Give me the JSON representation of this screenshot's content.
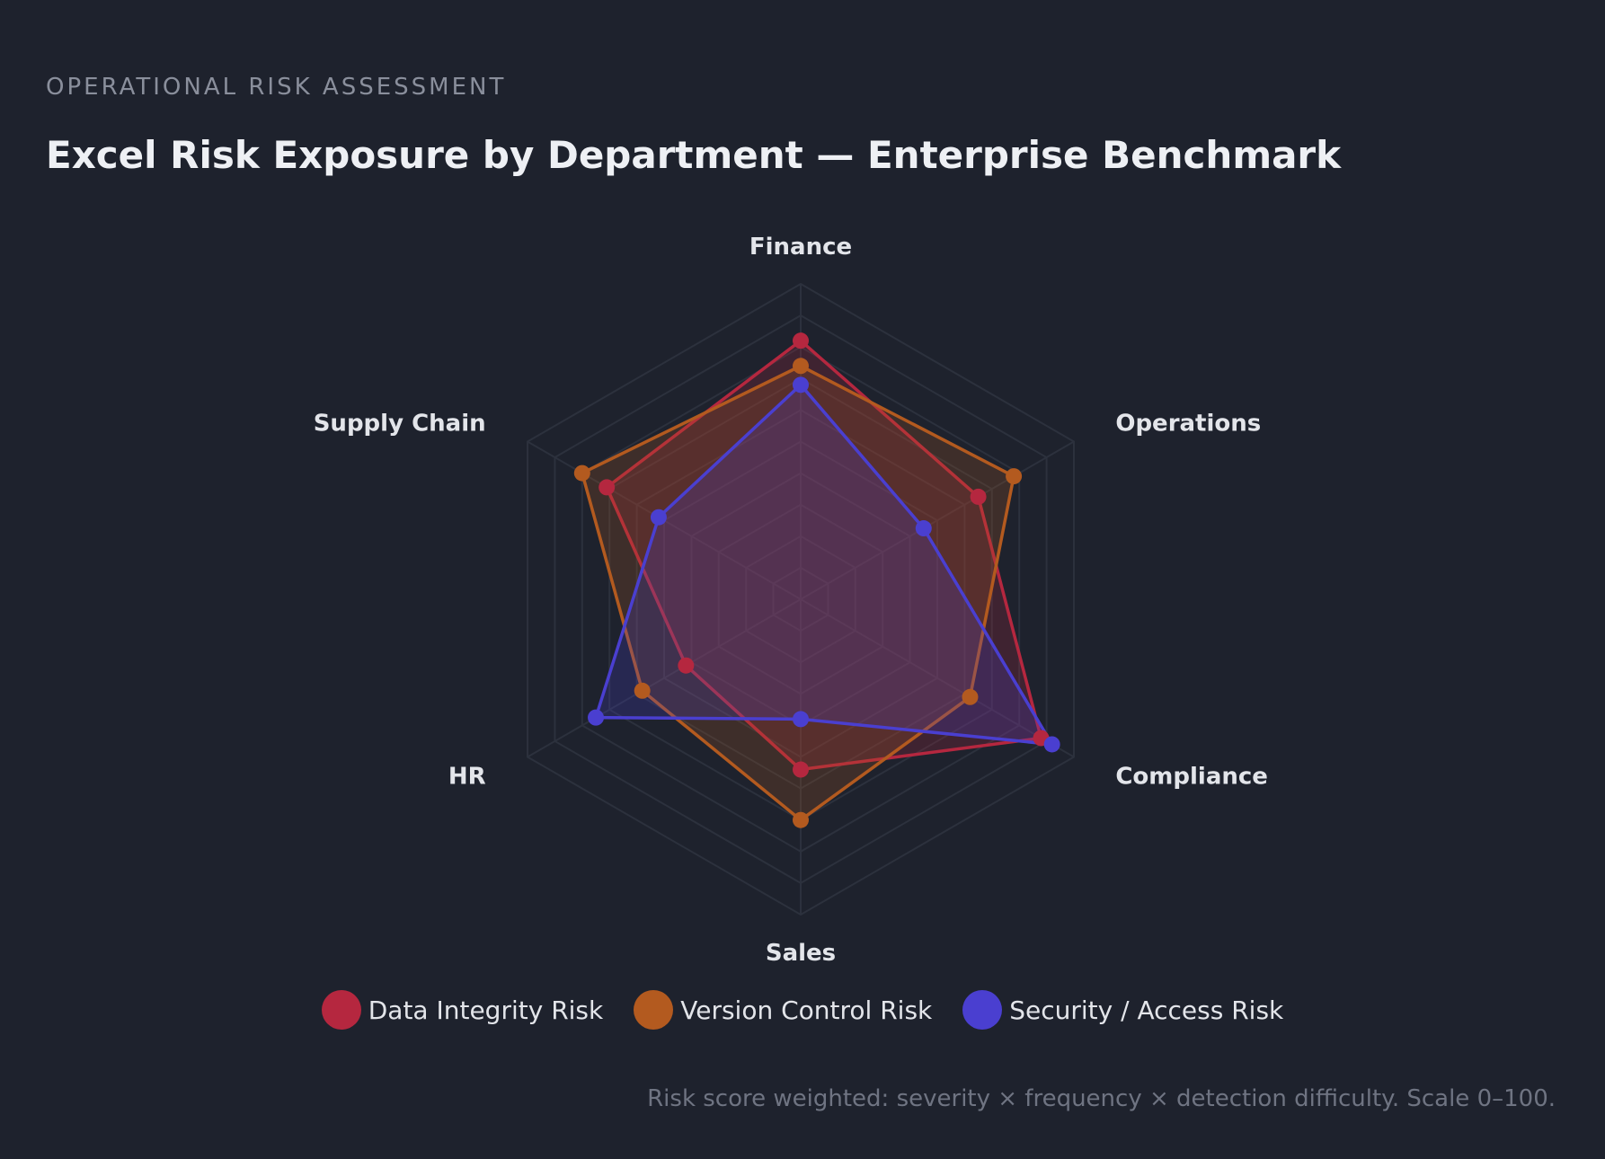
{
  "header": {
    "eyebrow": "OPERATIONAL RISK ASSESSMENT",
    "title": "Excel Risk Exposure by Department — Enterprise Benchmark"
  },
  "chart_data": {
    "type": "radar",
    "title": "Excel Risk Exposure by Department — Enterprise Benchmark",
    "categories": [
      "Finance",
      "Operations",
      "Compliance",
      "Sales",
      "HR",
      "Supply Chain"
    ],
    "range": [
      0,
      100
    ],
    "grid_rings": 10,
    "legend_placement": "bottom",
    "series": [
      {
        "name": "Data Integrity Risk",
        "color": "#b5273f",
        "values": [
          82,
          65,
          88,
          54,
          42,
          71
        ]
      },
      {
        "name": "Version Control Risk",
        "color": "#b35a1f",
        "values": [
          74,
          78,
          62,
          70,
          58,
          80
        ]
      },
      {
        "name": "Security / Access Risk",
        "color": "#4a3fd0",
        "values": [
          68,
          45,
          92,
          38,
          75,
          52
        ]
      }
    ]
  },
  "footnote": "Risk score weighted: severity × frequency × detection difficulty. Scale 0–100."
}
